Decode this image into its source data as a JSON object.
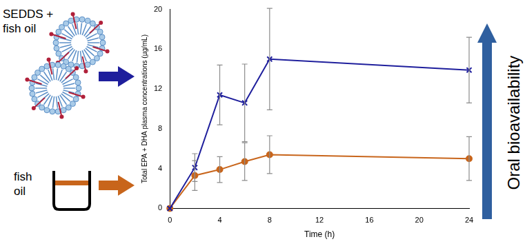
{
  "chart_data": {
    "type": "line",
    "x": [
      0,
      2,
      4,
      6,
      8,
      24
    ],
    "xlim": [
      0,
      24
    ],
    "xticks": [
      0,
      4,
      8,
      12,
      16,
      20,
      24
    ],
    "ylim": [
      0,
      20
    ],
    "yticks": [
      0,
      4,
      8,
      12,
      16,
      20
    ],
    "x_label": "Time (h)",
    "y_label": "Total EPA + DHA plasma concentrations (µg/mL)",
    "grid": false,
    "annotations": [
      "Oral bioavailability"
    ],
    "series": [
      {
        "name": "SEDDS + fish oil",
        "color": "#1e1e9c",
        "marker": "cross",
        "values": [
          0,
          4.1,
          11.4,
          10.6,
          15.0,
          13.9
        ],
        "errors": [
          0,
          1.4,
          3.0,
          3.9,
          5.1,
          3.3
        ]
      },
      {
        "name": "fish oil",
        "color": "#c8651b",
        "marker": "circle",
        "values": [
          0,
          3.3,
          3.9,
          4.7,
          5.4,
          5.0
        ],
        "errors": [
          0,
          1.5,
          1.3,
          1.9,
          1.9,
          2.2
        ]
      }
    ]
  }
}
